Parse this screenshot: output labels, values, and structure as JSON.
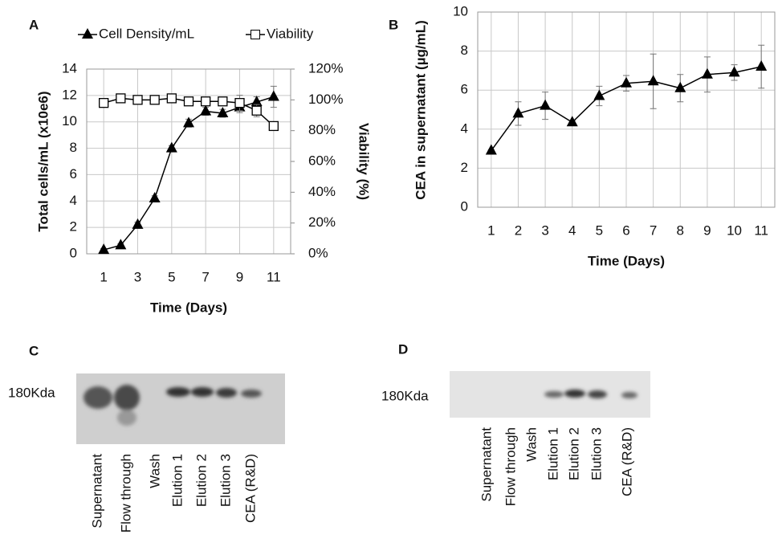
{
  "chart_data": [
    {
      "type": "line",
      "panel": "A",
      "x": [
        1,
        2,
        3,
        4,
        5,
        6,
        7,
        8,
        9,
        10,
        11
      ],
      "xlim": [
        0,
        12
      ],
      "xticks": [
        1,
        3,
        5,
        7,
        9,
        11
      ],
      "ylim": [
        0,
        14
      ],
      "yticks": [
        0,
        2,
        4,
        6,
        8,
        10,
        12,
        14
      ],
      "y2lim": [
        0,
        120
      ],
      "y2ticks": [
        {
          "value": 0,
          "label": "0%"
        },
        {
          "value": 20,
          "label": "20%"
        },
        {
          "value": 40,
          "label": "40%"
        },
        {
          "value": 60,
          "label": "60%"
        },
        {
          "value": 80,
          "label": "80%"
        },
        {
          "value": 100,
          "label": "100%"
        },
        {
          "value": 120,
          "label": "120%"
        }
      ],
      "x_label": "Time (Days)",
      "y_label": "Total cells/mL (x10e6)",
      "y2_label": "Viability (%)",
      "grid": true,
      "legend": "top",
      "series": [
        {
          "name": "Cell Density/mL",
          "color": "#000000",
          "marker": "triangle",
          "values": [
            0.3,
            0.65,
            2.2,
            4.2,
            8.0,
            9.9,
            10.8,
            10.65,
            11.1,
            11.5,
            11.9
          ],
          "errors": [
            0.1,
            0.1,
            0.2,
            0.2,
            0.2,
            0.3,
            0.3,
            0.3,
            0.4,
            0.4,
            0.8
          ]
        },
        {
          "name": "Viability",
          "color": "#000000",
          "marker": "square",
          "axis": "y2",
          "values": [
            98,
            101,
            100,
            100,
            101,
            99,
            99,
            99,
            98,
            93,
            83
          ],
          "errors": [
            1,
            1,
            1,
            1,
            1,
            1,
            1,
            1,
            5,
            4,
            1
          ]
        }
      ]
    },
    {
      "type": "line",
      "panel": "B",
      "x": [
        1,
        2,
        3,
        4,
        5,
        6,
        7,
        8,
        9,
        10,
        11
      ],
      "xlim": [
        0.5,
        11.5
      ],
      "xticks": [
        1,
        2,
        3,
        4,
        5,
        6,
        7,
        8,
        9,
        10,
        11
      ],
      "ylim": [
        0,
        10
      ],
      "yticks": [
        0,
        2,
        4,
        6,
        8,
        10
      ],
      "x_label": "Time (Days)",
      "y_label": "CEA in supernatant (µg/mL)",
      "grid": true,
      "series": [
        {
          "name": "CEA",
          "color": "#000000",
          "marker": "triangle",
          "values": [
            2.9,
            4.8,
            5.2,
            4.35,
            5.7,
            6.35,
            6.45,
            6.1,
            6.8,
            6.9,
            7.2
          ],
          "errors": [
            0.05,
            0.6,
            0.7,
            0.1,
            0.5,
            0.4,
            1.4,
            0.7,
            0.9,
            0.4,
            1.1
          ]
        }
      ]
    }
  ],
  "blots": [
    {
      "panel": "C",
      "marker": "180Kda",
      "lanes": [
        "Supernatant",
        "Flow through",
        "Wash",
        "Elution 1",
        "Elution 2",
        "Elution 3",
        "CEA (R&D)"
      ]
    },
    {
      "panel": "D",
      "marker": "180Kda",
      "lanes": [
        "Supernatant",
        "Flow through",
        "Wash",
        "Elution 1",
        "Elution 2",
        "Elution 3",
        "CEA (R&D)"
      ]
    }
  ]
}
